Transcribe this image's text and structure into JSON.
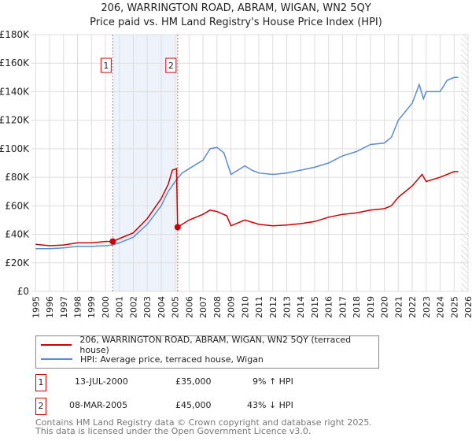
{
  "title": "206, WARRINGTON ROAD, ABRAM, WIGAN, WN2 5QY",
  "subtitle": "Price paid vs. HM Land Registry's House Price Index (HPI)",
  "chart_data": {
    "type": "line",
    "xlim": [
      1995,
      2026
    ],
    "ylim": [
      0,
      180000
    ],
    "x_ticks": [
      "1995",
      "1996",
      "1997",
      "1998",
      "1999",
      "2000",
      "2001",
      "2002",
      "2003",
      "2004",
      "2005",
      "2006",
      "2007",
      "2008",
      "2009",
      "2010",
      "2011",
      "2012",
      "2013",
      "2014",
      "2015",
      "2016",
      "2017",
      "2018",
      "2019",
      "2020",
      "2021",
      "2022",
      "2023",
      "2024",
      "2025",
      "2026"
    ],
    "y_ticks": [
      {
        "v": 0,
        "label": "£0"
      },
      {
        "v": 20000,
        "label": "£20K"
      },
      {
        "v": 40000,
        "label": "£40K"
      },
      {
        "v": 60000,
        "label": "£60K"
      },
      {
        "v": 80000,
        "label": "£80K"
      },
      {
        "v": 100000,
        "label": "£100K"
      },
      {
        "v": 120000,
        "label": "£120K"
      },
      {
        "v": 140000,
        "label": "£140K"
      },
      {
        "v": 160000,
        "label": "£160K"
      },
      {
        "v": 180000,
        "label": "£180K"
      }
    ],
    "grid": true,
    "series": [
      {
        "name": "206, WARRINGTON ROAD, ABRAM, WIGAN, WN2 5QY (terraced house)",
        "color": "#cc0000",
        "x": [
          1995,
          1996,
          1997,
          1998,
          1999,
          2000,
          2000.53,
          2001,
          2002,
          2003,
          2004,
          2004.5,
          2004.8,
          2005.1,
          2005.18,
          2005.5,
          2006,
          2007,
          2007.5,
          2008,
          2008.7,
          2009,
          2009.5,
          2010,
          2011,
          2012,
          2013,
          2014,
          2015,
          2016,
          2017,
          2018,
          2019,
          2020,
          2020.5,
          2021,
          2022,
          2022.7,
          2023,
          2024,
          2025,
          2025.3
        ],
        "y": [
          33000,
          32000,
          32500,
          34000,
          34000,
          35000,
          35000,
          37000,
          41000,
          51000,
          65000,
          75000,
          85000,
          86000,
          45000,
          47000,
          50000,
          54000,
          57000,
          56000,
          53000,
          46000,
          48000,
          50000,
          47000,
          46000,
          46500,
          47500,
          49000,
          52000,
          54000,
          55000,
          57000,
          58000,
          60000,
          66000,
          74000,
          82000,
          77000,
          80000,
          84000,
          84000
        ]
      },
      {
        "name": "HPI: Average price, terraced house, Wigan",
        "color": "#5b8bd0",
        "x": [
          1995,
          1996,
          1997,
          1998,
          1999,
          2000,
          2000.5,
          2001,
          2002,
          2003,
          2004,
          2004.5,
          2005,
          2005.5,
          2006,
          2007,
          2007.5,
          2008,
          2008.5,
          2009,
          2009.5,
          2010,
          2010.5,
          2011,
          2012,
          2013,
          2014,
          2015,
          2016,
          2017,
          2018,
          2019,
          2020,
          2020.5,
          2021,
          2022,
          2022.5,
          2022.8,
          2023,
          2024,
          2024.5,
          2025,
          2025.3
        ],
        "y": [
          30000,
          30000,
          30500,
          31500,
          31500,
          32000,
          32500,
          34000,
          38000,
          47000,
          60000,
          70000,
          77000,
          83000,
          86000,
          92000,
          100000,
          101000,
          97000,
          82000,
          85000,
          88000,
          85000,
          83000,
          82000,
          83000,
          85000,
          87000,
          90000,
          95000,
          98000,
          103000,
          104000,
          108000,
          120000,
          132000,
          145000,
          135000,
          140000,
          140000,
          148000,
          150000,
          150000
        ]
      }
    ],
    "sales": [
      {
        "n": "1",
        "x": 2000.53,
        "y": 35000
      },
      {
        "n": "2",
        "x": 2005.18,
        "y": 45000
      }
    ],
    "shaded_range": [
      2000.53,
      2005.18
    ],
    "forecast_hatch_from": 2025.5
  },
  "legend": [
    {
      "label": "206, WARRINGTON ROAD, ABRAM, WIGAN, WN2 5QY (terraced house)",
      "color": "#cc0000"
    },
    {
      "label": "HPI: Average price, terraced house, Wigan",
      "color": "#5b8bd0"
    }
  ],
  "transactions": [
    {
      "n": "1",
      "date": "13-JUL-2000",
      "price": "£35,000",
      "hpi": "9% ↑ HPI"
    },
    {
      "n": "2",
      "date": "08-MAR-2005",
      "price": "£45,000",
      "hpi": "43% ↓ HPI"
    }
  ],
  "footer": [
    "Contains HM Land Registry data © Crown copyright and database right 2025.",
    "This data is licensed under the Open Government Licence v3.0."
  ]
}
